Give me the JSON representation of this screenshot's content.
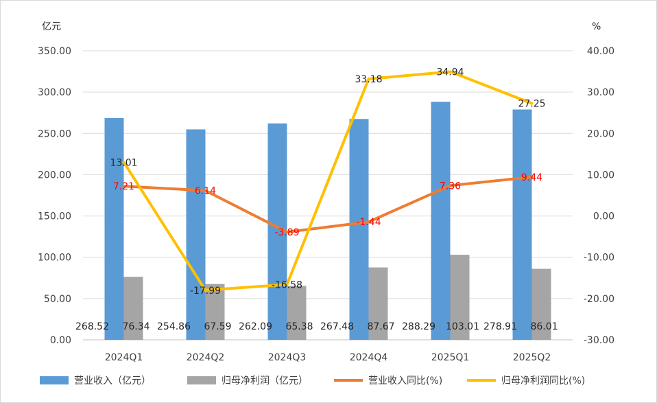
{
  "chart_data": {
    "type": "bar",
    "categories": [
      "2024Q1",
      "2024Q2",
      "2024Q3",
      "2024Q4",
      "2025Q1",
      "2025Q2"
    ],
    "left_axis": {
      "unit": "亿元",
      "ylim": [
        0,
        350
      ],
      "ticks": [
        "0.00",
        "50.00",
        "100.00",
        "150.00",
        "200.00",
        "250.00",
        "300.00",
        "350.00"
      ]
    },
    "right_axis": {
      "unit": "%",
      "ylim": [
        -30,
        40
      ],
      "ticks": [
        "-30.00",
        "-20.00",
        "-10.00",
        "0.00",
        "10.00",
        "20.00",
        "30.00",
        "40.00"
      ]
    },
    "grid": true,
    "legend_position": "bottom",
    "series": [
      {
        "name": "营业收入（亿元）",
        "kind": "bar",
        "axis": "left",
        "color": "#5b9bd5",
        "values": [
          268.52,
          254.86,
          262.09,
          267.48,
          288.29,
          278.91
        ],
        "labels": [
          "268.52",
          "254.86",
          "262.09",
          "267.48",
          "288.29",
          "278.91"
        ]
      },
      {
        "name": "归母净利润（亿元）",
        "kind": "bar",
        "axis": "left",
        "color": "#a5a5a5",
        "values": [
          76.34,
          67.59,
          65.38,
          87.67,
          103.01,
          86.01
        ],
        "labels": [
          "76.34",
          "67.59",
          "65.38",
          "87.67",
          "103.01",
          "86.01"
        ]
      },
      {
        "name": "营业收入同比(%)",
        "kind": "line",
        "axis": "right",
        "color": "#ed7d31",
        "label_color": "#ff0000",
        "values": [
          7.21,
          6.14,
          -3.89,
          -1.44,
          7.36,
          9.44
        ],
        "labels": [
          "7.21",
          "6.14",
          "-3.89",
          "-1.44",
          "7.36",
          "9.44"
        ]
      },
      {
        "name": "归母净利润同比(%)",
        "kind": "line",
        "axis": "right",
        "color": "#ffc000",
        "label_color": "#262626",
        "values": [
          13.01,
          -17.99,
          -16.58,
          33.18,
          34.94,
          27.25
        ],
        "labels": [
          "13.01",
          "-17.99",
          "-16.58",
          "33.18",
          "34.94",
          "27.25"
        ]
      }
    ]
  }
}
